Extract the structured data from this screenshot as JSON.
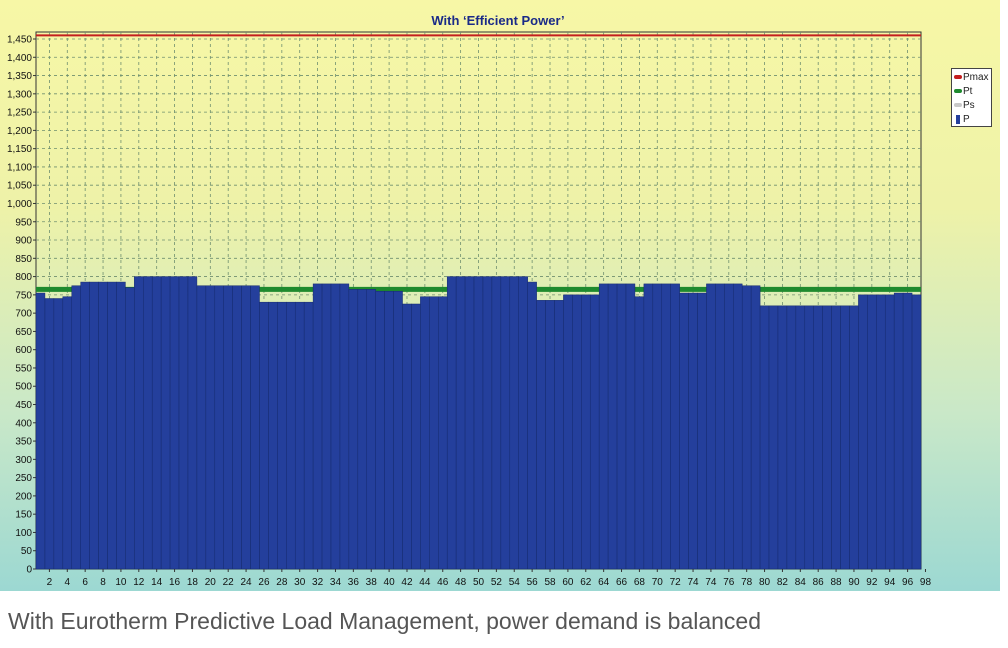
{
  "caption": "With Eurotherm Predictive Load Management, power demand is balanced",
  "colors": {
    "bar": "#243f9c",
    "pmax": "#c41e1e",
    "pt": "#1e8a2e",
    "ps": "#c8c8c8",
    "title": "#1a2a88"
  },
  "chart_data": {
    "type": "bar",
    "title": "With ‘Efficient Power’",
    "xlabel": "",
    "ylabel": "",
    "ylim": [
      0,
      1450
    ],
    "y_ticks": [
      "0",
      "50",
      "100",
      "150",
      "200",
      "250",
      "300",
      "350",
      "400",
      "450",
      "500",
      "550",
      "600",
      "650",
      "700",
      "750",
      "800",
      "850",
      "900",
      "950",
      "1,000",
      "1,050",
      "1,100",
      "1,150",
      "1,200",
      "1,250",
      "1,300",
      "1,350",
      "1,400",
      "1,450"
    ],
    "x_ticks": [
      "2",
      "4",
      "6",
      "8",
      "10",
      "12",
      "14",
      "16",
      "18",
      "20",
      "22",
      "24",
      "26",
      "28",
      "30",
      "32",
      "34",
      "36",
      "38",
      "40",
      "42",
      "44",
      "46",
      "48",
      "50",
      "52",
      "54",
      "56",
      "58",
      "60",
      "62",
      "64",
      "66",
      "68",
      "70",
      "72",
      "74",
      "74",
      "76",
      "78",
      "80",
      "82",
      "84",
      "86",
      "88",
      "90",
      "92",
      "94",
      "96",
      "98"
    ],
    "grid": true,
    "legend_position": "right",
    "legend": [
      "Pmax",
      "Pt",
      "Ps",
      "P"
    ],
    "series": [
      {
        "name": "P",
        "type": "bar",
        "values": [
          755,
          740,
          740,
          745,
          775,
          785,
          785,
          785,
          785,
          785,
          770,
          800,
          800,
          800,
          800,
          800,
          800,
          800,
          775,
          775,
          775,
          775,
          775,
          775,
          775,
          730,
          730,
          730,
          730,
          730,
          730,
          780,
          780,
          780,
          780,
          765,
          765,
          765,
          760,
          760,
          760,
          725,
          725,
          745,
          745,
          745,
          800,
          800,
          800,
          800,
          800,
          800,
          800,
          800,
          800,
          785,
          735,
          735,
          735,
          750,
          750,
          750,
          750,
          780,
          780,
          780,
          780,
          745,
          780,
          780,
          780,
          780,
          755,
          755,
          755,
          780,
          780,
          780,
          780,
          775,
          775,
          720,
          720,
          720,
          720,
          720,
          720,
          720,
          720,
          720,
          720,
          720,
          750,
          750,
          750,
          750,
          755,
          755,
          750
        ]
      },
      {
        "name": "Pt",
        "type": "line",
        "value": 765
      },
      {
        "name": "Pmax",
        "type": "line",
        "value": 1460
      },
      {
        "name": "Ps",
        "type": "line"
      }
    ]
  }
}
